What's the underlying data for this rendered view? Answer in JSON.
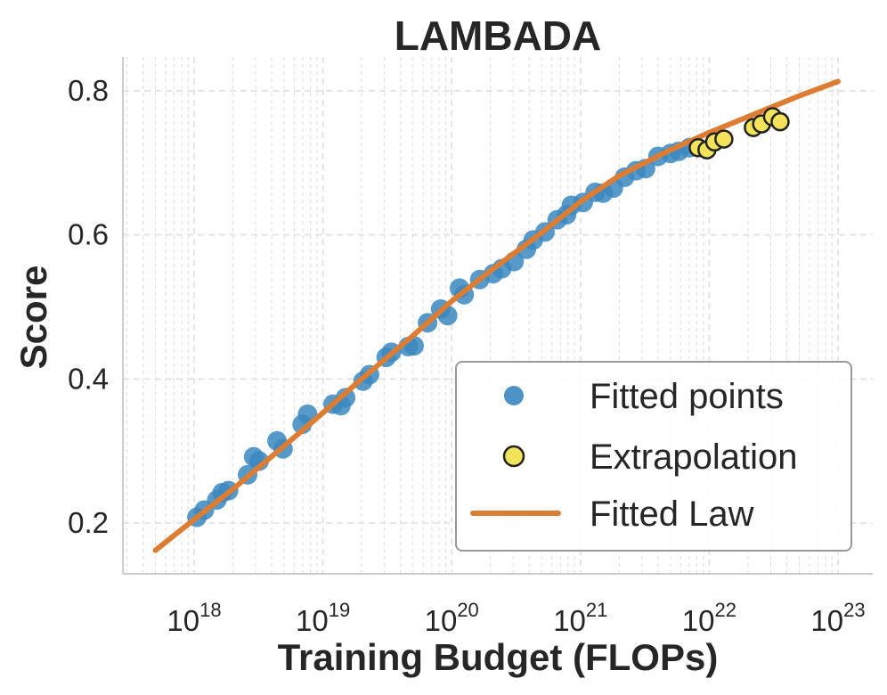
{
  "chart_data": {
    "type": "scatter",
    "title": "LAMBADA",
    "xlabel": "Training Budget (FLOPs)",
    "ylabel": "Score",
    "xscale": "log",
    "xlim": [
      3e+17,
      2e+23
    ],
    "ylim": [
      0.13,
      0.845
    ],
    "grid": true,
    "legend_position": "lower-right",
    "x_ticks": [
      {
        "value": 1e+18,
        "base": "10",
        "exp": "18"
      },
      {
        "value": 1e+19,
        "base": "10",
        "exp": "19"
      },
      {
        "value": 1e+20,
        "base": "10",
        "exp": "20"
      },
      {
        "value": 1e+21,
        "base": "10",
        "exp": "21"
      },
      {
        "value": 1e+22,
        "base": "10",
        "exp": "22"
      },
      {
        "value": 1e+23,
        "base": "10",
        "exp": "23"
      }
    ],
    "y_ticks": [
      {
        "value": 0.2,
        "label": "0.2"
      },
      {
        "value": 0.4,
        "label": "0.4"
      },
      {
        "value": 0.6,
        "label": "0.6"
      },
      {
        "value": 0.8,
        "label": "0.8"
      }
    ],
    "series": [
      {
        "name": "Fitted points",
        "kind": "scatter",
        "color": "#3a87bf",
        "points": [
          [
            1.05e+18,
            0.208
          ],
          [
            1.2e+18,
            0.218
          ],
          [
            1.5e+18,
            0.232
          ],
          [
            1.65e+18,
            0.242
          ],
          [
            1.85e+18,
            0.245
          ],
          [
            2.6e+18,
            0.267
          ],
          [
            2.9e+18,
            0.292
          ],
          [
            3.2e+18,
            0.286
          ],
          [
            4.4e+18,
            0.314
          ],
          [
            4.9e+18,
            0.303
          ],
          [
            6.9e+18,
            0.337
          ],
          [
            7.6e+18,
            0.351
          ],
          [
            1.2e+19,
            0.365
          ],
          [
            1.38e+19,
            0.363
          ],
          [
            1.5e+19,
            0.374
          ],
          [
            2.05e+19,
            0.397
          ],
          [
            2.3e+19,
            0.406
          ],
          [
            3.1e+19,
            0.43
          ],
          [
            3.4e+19,
            0.437
          ],
          [
            4.6e+19,
            0.445
          ],
          [
            5.1e+19,
            0.446
          ],
          [
            6.5e+19,
            0.478
          ],
          [
            8.2e+19,
            0.497
          ],
          [
            9.3e+19,
            0.488
          ],
          [
            1.15e+20,
            0.526
          ],
          [
            1.25e+20,
            0.517
          ],
          [
            1.65e+20,
            0.538
          ],
          [
            2.1e+20,
            0.546
          ],
          [
            2.45e+20,
            0.553
          ],
          [
            3.05e+20,
            0.563
          ],
          [
            3.8e+20,
            0.58
          ],
          [
            4.3e+20,
            0.593
          ],
          [
            5.3e+20,
            0.604
          ],
          [
            6.6e+20,
            0.621
          ],
          [
            7.8e+20,
            0.628
          ],
          [
            8.5e+20,
            0.641
          ],
          [
            1.05e+21,
            0.645
          ],
          [
            1.3e+21,
            0.659
          ],
          [
            1.5e+21,
            0.658
          ],
          [
            1.8e+21,
            0.665
          ],
          [
            2.2e+21,
            0.68
          ],
          [
            2.7e+21,
            0.689
          ],
          [
            3.2e+21,
            0.692
          ],
          [
            4e+21,
            0.709
          ],
          [
            5e+21,
            0.713
          ],
          [
            5.8e+21,
            0.716
          ],
          [
            7e+21,
            0.721
          ]
        ]
      },
      {
        "name": "Extrapolation",
        "kind": "scatter",
        "color": "#f2e35b",
        "edge_color": "#222222",
        "points": [
          [
            8.2e+21,
            0.721
          ],
          [
            9.6e+21,
            0.718
          ],
          [
            1.1e+22,
            0.729
          ],
          [
            1.3e+22,
            0.733
          ],
          [
            2.2e+22,
            0.749
          ],
          [
            2.55e+22,
            0.754
          ],
          [
            3.1e+22,
            0.764
          ],
          [
            3.55e+22,
            0.757
          ]
        ]
      },
      {
        "name": "Fitted Law",
        "kind": "line",
        "color": "#dd7d33",
        "points": [
          [
            5e+17,
            0.162
          ],
          [
            1e+18,
            0.205
          ],
          [
            2e+18,
            0.247
          ],
          [
            5e+18,
            0.307
          ],
          [
            1e+19,
            0.353
          ],
          [
            2e+19,
            0.4
          ],
          [
            5e+19,
            0.46
          ],
          [
            1e+20,
            0.508
          ],
          [
            2e+20,
            0.55
          ],
          [
            5e+20,
            0.603
          ],
          [
            1e+21,
            0.646
          ],
          [
            2e+21,
            0.682
          ],
          [
            5e+21,
            0.718
          ],
          [
            1e+22,
            0.742
          ],
          [
            2e+22,
            0.764
          ],
          [
            5e+22,
            0.793
          ],
          [
            1e+23,
            0.813
          ]
        ]
      }
    ],
    "legend": [
      {
        "label": "Fitted points",
        "marker": "circle",
        "color": "#3a87bf"
      },
      {
        "label": "Extrapolation",
        "marker": "circle-outlined",
        "color": "#f2e35b"
      },
      {
        "label": "Fitted Law",
        "marker": "line",
        "color": "#dd7d33"
      }
    ]
  }
}
